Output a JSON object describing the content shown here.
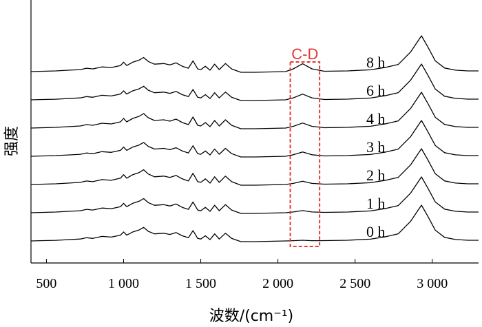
{
  "chart_data": {
    "type": "line",
    "xlabel": "波数/(cm⁻¹)",
    "ylabel": "强度",
    "xlim": [
      400,
      3300
    ],
    "xticks": [
      500,
      1000,
      1500,
      2000,
      2500,
      3000
    ],
    "xtick_labels": [
      "500",
      "1 000",
      "1 500",
      "2 000",
      "2 500",
      "3 000"
    ],
    "grid": false,
    "y_ticks_shown": false,
    "annotation": {
      "label": "C-D",
      "x_range": [
        2080,
        2270
      ],
      "color": "#e53935"
    },
    "baseline_points": [
      [
        400,
        0.0
      ],
      [
        480,
        0.01
      ],
      [
        560,
        0.02
      ],
      [
        640,
        0.04
      ],
      [
        720,
        0.06
      ],
      [
        760,
        0.1
      ],
      [
        800,
        0.08
      ],
      [
        860,
        0.14
      ],
      [
        920,
        0.12
      ],
      [
        980,
        0.18
      ],
      [
        1000,
        0.28
      ],
      [
        1020,
        0.18
      ],
      [
        1060,
        0.28
      ],
      [
        1100,
        0.34
      ],
      [
        1130,
        0.42
      ],
      [
        1160,
        0.3
      ],
      [
        1200,
        0.22
      ],
      [
        1260,
        0.24
      ],
      [
        1300,
        0.2
      ],
      [
        1340,
        0.26
      ],
      [
        1380,
        0.16
      ],
      [
        1420,
        0.1
      ],
      [
        1450,
        0.32
      ],
      [
        1480,
        0.08
      ],
      [
        1500,
        0.06
      ],
      [
        1530,
        0.16
      ],
      [
        1560,
        0.04
      ],
      [
        1590,
        0.22
      ],
      [
        1620,
        0.06
      ],
      [
        1660,
        0.24
      ],
      [
        1700,
        0.08
      ],
      [
        1760,
        -0.02
      ],
      [
        1850,
        -0.02
      ],
      [
        1950,
        -0.01
      ],
      [
        2050,
        0.0
      ],
      [
        2100,
        0.04
      ],
      [
        2160,
        0.1
      ],
      [
        2220,
        0.04
      ],
      [
        2300,
        0.01
      ],
      [
        2450,
        0.02
      ],
      [
        2600,
        0.05
      ],
      [
        2700,
        0.12
      ],
      [
        2780,
        0.2
      ],
      [
        2860,
        0.55
      ],
      [
        2930,
        1.0
      ],
      [
        2970,
        0.7
      ],
      [
        3020,
        0.3
      ],
      [
        3080,
        0.1
      ],
      [
        3150,
        0.04
      ],
      [
        3230,
        0.02
      ],
      [
        3300,
        0.02
      ]
    ],
    "series": [
      {
        "name": "0 h",
        "offset": 0.0,
        "cd_height": 0.02
      },
      {
        "name": "1 h",
        "offset": 1.0,
        "cd_height": 0.06
      },
      {
        "name": "2 h",
        "offset": 2.0,
        "cd_height": 0.09
      },
      {
        "name": "3 h",
        "offset": 3.0,
        "cd_height": 0.12
      },
      {
        "name": "4 h",
        "offset": 4.0,
        "cd_height": 0.14
      },
      {
        "name": "6 h",
        "offset": 5.0,
        "cd_height": 0.16
      },
      {
        "name": "8 h",
        "offset": 6.0,
        "cd_height": 0.22
      }
    ]
  }
}
